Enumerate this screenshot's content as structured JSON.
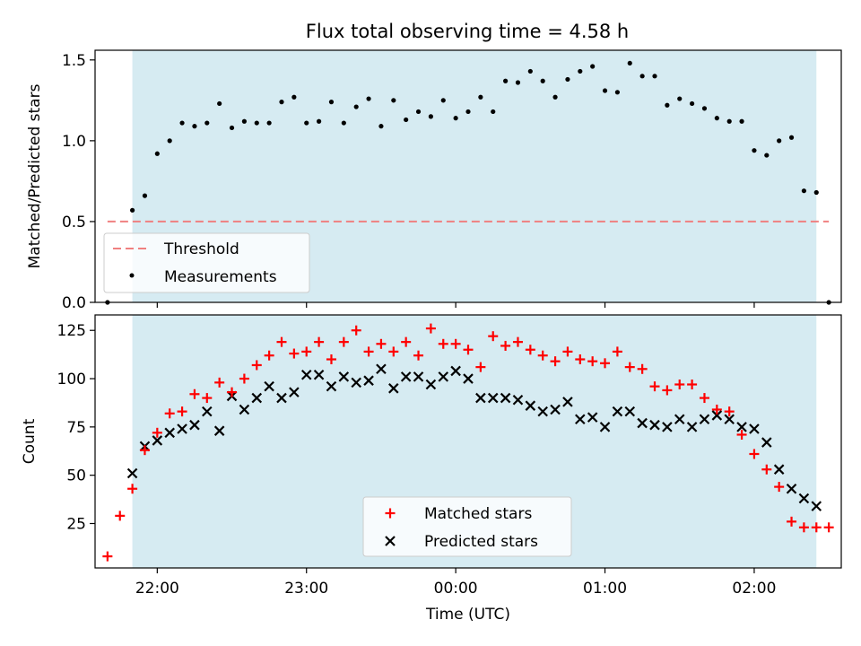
{
  "title": "Flux total observing time = 4.58 h",
  "chart_data": [
    {
      "type": "scatter",
      "title": "Flux total observing time = 4.58 h",
      "ylabel": "Matched/Predicted stars",
      "xlabel": "",
      "ylim": [
        0,
        1.56
      ],
      "yticks": [
        0.0,
        0.5,
        1.0,
        1.5
      ],
      "ytick_labels": [
        "0.0",
        "0.5",
        "1.0",
        "1.5"
      ],
      "threshold": 0.5,
      "shaded_span": [
        "21:50",
        "02:25"
      ],
      "legend_position": "lower-left",
      "legend": [
        "Threshold",
        "Measurements"
      ],
      "series": [
        {
          "name": "Measurements",
          "x": [
            "21:40",
            "21:50",
            "21:55",
            "22:00",
            "22:05",
            "22:10",
            "22:15",
            "22:20",
            "22:25",
            "22:30",
            "22:35",
            "22:40",
            "22:45",
            "22:50",
            "22:55",
            "23:00",
            "23:05",
            "23:10",
            "23:15",
            "23:20",
            "23:25",
            "23:30",
            "23:35",
            "23:40",
            "23:45",
            "23:50",
            "23:55",
            "00:00",
            "00:05",
            "00:10",
            "00:15",
            "00:20",
            "00:25",
            "00:30",
            "00:35",
            "00:40",
            "00:45",
            "00:50",
            "00:55",
            "01:00",
            "01:05",
            "01:10",
            "01:15",
            "01:20",
            "01:25",
            "01:30",
            "01:35",
            "01:40",
            "01:45",
            "01:50",
            "01:55",
            "02:00",
            "02:05",
            "02:10",
            "02:15",
            "02:20",
            "02:25",
            "02:30"
          ],
          "y": [
            0.0,
            0.57,
            0.66,
            0.92,
            1.0,
            1.11,
            1.09,
            1.11,
            1.23,
            1.08,
            1.12,
            1.11,
            1.11,
            1.24,
            1.27,
            1.11,
            1.12,
            1.24,
            1.11,
            1.21,
            1.26,
            1.09,
            1.25,
            1.13,
            1.18,
            1.15,
            1.25,
            1.14,
            1.18,
            1.27,
            1.18,
            1.37,
            1.36,
            1.43,
            1.37,
            1.27,
            1.38,
            1.43,
            1.46,
            1.31,
            1.3,
            1.48,
            1.4,
            1.4,
            1.22,
            1.26,
            1.23,
            1.2,
            1.14,
            1.12,
            1.12,
            0.94,
            0.91,
            1.0,
            1.02,
            0.69,
            0.68,
            0.0
          ]
        }
      ]
    },
    {
      "type": "scatter",
      "title": "",
      "xlabel": "Time (UTC)",
      "ylabel": "Count",
      "ylim": [
        2,
        133
      ],
      "yticks": [
        25,
        50,
        75,
        100,
        125
      ],
      "ytick_labels": [
        "25",
        "50",
        "75",
        "100",
        "125"
      ],
      "xlim": [
        "21:35",
        "02:35"
      ],
      "xticks": [
        "22:00",
        "23:00",
        "00:00",
        "01:00",
        "02:00"
      ],
      "shaded_span": [
        "21:50",
        "02:25"
      ],
      "legend_position": "lower-center",
      "legend": [
        "Matched stars",
        "Predicted stars"
      ],
      "series": [
        {
          "name": "Matched stars",
          "color": "#ff0000",
          "x": [
            "21:40",
            "21:45",
            "21:50",
            "21:55",
            "22:00",
            "22:05",
            "22:10",
            "22:15",
            "22:20",
            "22:25",
            "22:30",
            "22:35",
            "22:40",
            "22:45",
            "22:50",
            "22:55",
            "23:00",
            "23:05",
            "23:10",
            "23:15",
            "23:20",
            "23:25",
            "23:30",
            "23:35",
            "23:40",
            "23:45",
            "23:50",
            "23:55",
            "00:00",
            "00:05",
            "00:10",
            "00:15",
            "00:20",
            "00:25",
            "00:30",
            "00:35",
            "00:40",
            "00:45",
            "00:50",
            "00:55",
            "01:00",
            "01:05",
            "01:10",
            "01:15",
            "01:20",
            "01:25",
            "01:30",
            "01:35",
            "01:40",
            "01:45",
            "01:50",
            "01:55",
            "02:00",
            "02:05",
            "02:10",
            "02:15",
            "02:20",
            "02:25",
            "02:30"
          ],
          "y": [
            8,
            29,
            43,
            63,
            72,
            82,
            83,
            92,
            90,
            98,
            93,
            100,
            107,
            112,
            119,
            113,
            114,
            119,
            110,
            119,
            125,
            114,
            118,
            114,
            119,
            112,
            126,
            118,
            118,
            115,
            106,
            122,
            117,
            119,
            115,
            112,
            109,
            114,
            110,
            109,
            108,
            114,
            106,
            105,
            96,
            94,
            97,
            97,
            90,
            84,
            83,
            71,
            61,
            53,
            44,
            26,
            23,
            23,
            23
          ]
        },
        {
          "name": "Predicted stars",
          "color": "#000000",
          "x": [
            "21:50",
            "21:55",
            "22:00",
            "22:05",
            "22:10",
            "22:15",
            "22:20",
            "22:25",
            "22:30",
            "22:35",
            "22:40",
            "22:45",
            "22:50",
            "22:55",
            "23:00",
            "23:05",
            "23:10",
            "23:15",
            "23:20",
            "23:25",
            "23:30",
            "23:35",
            "23:40",
            "23:45",
            "23:50",
            "23:55",
            "00:00",
            "00:05",
            "00:10",
            "00:15",
            "00:20",
            "00:25",
            "00:30",
            "00:35",
            "00:40",
            "00:45",
            "00:50",
            "00:55",
            "01:00",
            "01:05",
            "01:10",
            "01:15",
            "01:20",
            "01:25",
            "01:30",
            "01:35",
            "01:40",
            "01:45",
            "01:50",
            "01:55",
            "02:00",
            "02:05",
            "02:10",
            "02:15",
            "02:20",
            "02:25"
          ],
          "y": [
            51,
            65,
            68,
            72,
            74,
            76,
            83,
            73,
            91,
            84,
            90,
            96,
            90,
            93,
            102,
            102,
            96,
            101,
            98,
            99,
            105,
            95,
            101,
            101,
            97,
            101,
            104,
            100,
            90,
            90,
            90,
            89,
            86,
            83,
            84,
            88,
            79,
            80,
            75,
            83,
            83,
            77,
            76,
            75,
            79,
            75,
            79,
            81,
            79,
            75,
            74,
            67,
            53,
            43,
            38,
            34
          ]
        }
      ]
    }
  ]
}
